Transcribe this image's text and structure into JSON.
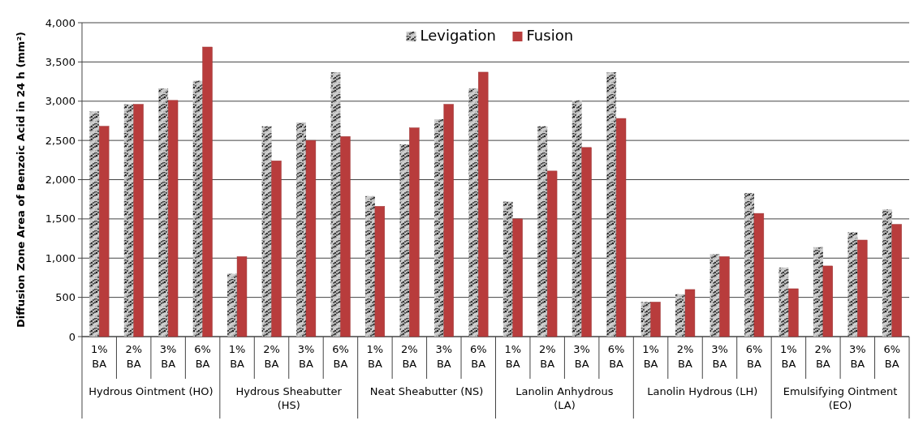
{
  "chart_data": {
    "type": "bar",
    "ylabel": "Diffusion Zone Area of Benzoic Acid in 24 h  (mm²)",
    "categories": [
      "1% BA",
      "2% BA",
      "3% BA",
      "6% BA",
      "1% BA",
      "2% BA",
      "3% BA",
      "6% BA",
      "1% BA",
      "2% BA",
      "3% BA",
      "6% BA",
      "1% BA",
      "2% BA",
      "3% BA",
      "6% BA",
      "1% BA",
      "2% BA",
      "3% BA",
      "6% BA",
      "1% BA",
      "2% BA",
      "3% BA",
      "6% BA"
    ],
    "series": [
      {
        "name": "Levigation",
        "color": "#a6a6a6",
        "values": [
          2870,
          2960,
          3160,
          3260,
          800,
          2680,
          2730,
          3370,
          1790,
          2450,
          2770,
          3160,
          1720,
          2680,
          3010,
          3370,
          440,
          540,
          1050,
          1830,
          880,
          1140,
          1330,
          1620
        ]
      },
      {
        "name": "Fusion",
        "color": "#b83c3c",
        "values": [
          2680,
          2960,
          3010,
          3690,
          1020,
          2240,
          2500,
          2550,
          1660,
          2660,
          2960,
          3370,
          1500,
          2110,
          2410,
          2780,
          440,
          600,
          1020,
          1570,
          610,
          900,
          1230,
          1430
        ]
      }
    ],
    "annotations": [
      "Hydrous Ointment (HO)",
      "Hydrous Sheabutter (HS)",
      "Neat Sheabutter (NS)",
      "Lanolin Anhydrous (LA)",
      "Lanolin Hydrous (LH)",
      "Emulsifying Ointment (EO)"
    ],
    "ylim": [
      0,
      4000
    ],
    "yticks": [
      0,
      {
        "value": 500,
        "label": "500"
      },
      {
        "value": 1000,
        "label": "1,000"
      },
      {
        "value": 1500,
        "label": "1,500"
      },
      {
        "value": 2000,
        "label": "2,000"
      },
      {
        "value": 2500,
        "label": "2,500"
      },
      {
        "value": 3000,
        "label": "3,000"
      },
      {
        "value": 3500,
        "label": "3,500"
      },
      {
        "value": 4000,
        "label": "4,000"
      }
    ],
    "grid": "y",
    "legend": "top"
  }
}
